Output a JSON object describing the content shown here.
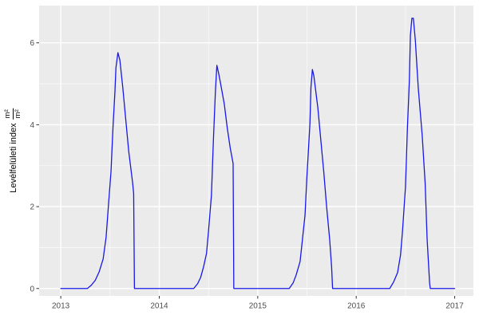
{
  "figure": {
    "background": "#FFFFFF",
    "panel_background": "#EBEBEB",
    "grid_major_color": "#FFFFFF",
    "grid_minor_color": "#FFFFFF",
    "tick_mark_color": "#333333",
    "axis_text_color": "#4D4D4D",
    "line_color": "#1717E8"
  },
  "axes": {
    "y_label": "Levélfelületi index",
    "y_unit_numerator": "m²",
    "y_unit_denominator": "m²"
  },
  "chart_data": {
    "type": "line",
    "title": "",
    "xlabel": "",
    "ylabel": "Levélfelületi index (m²/m²)",
    "legend_position": "none",
    "grid": true,
    "x_ticks": [
      2013,
      2014,
      2015,
      2016,
      2017
    ],
    "x_tick_labels": [
      "2013",
      "2014",
      "2015",
      "2016",
      "2017"
    ],
    "y_ticks": [
      0,
      2,
      4,
      6
    ],
    "y_tick_labels": [
      "0",
      "2",
      "4",
      "6"
    ],
    "x_minor_ticks": [
      2013.5,
      2014.5,
      2015.5,
      2016.5
    ],
    "y_minor_ticks": [
      1,
      3,
      5
    ],
    "xlim": [
      2012.78,
      2017.19
    ],
    "ylim": [
      -0.18,
      6.91
    ],
    "series": [
      {
        "name": "LAI",
        "color": "#1717E8",
        "points": [
          [
            2013.0,
            0
          ],
          [
            2013.27,
            0
          ],
          [
            2013.31,
            0.08
          ],
          [
            2013.35,
            0.2
          ],
          [
            2013.39,
            0.41
          ],
          [
            2013.43,
            0.72
          ],
          [
            2013.46,
            1.25
          ],
          [
            2013.48,
            1.9
          ],
          [
            2013.51,
            2.86
          ],
          [
            2013.53,
            3.93
          ],
          [
            2013.55,
            4.81
          ],
          [
            2013.56,
            5.39
          ],
          [
            2013.58,
            5.76
          ],
          [
            2013.6,
            5.58
          ],
          [
            2013.63,
            4.9
          ],
          [
            2013.66,
            4.12
          ],
          [
            2013.69,
            3.35
          ],
          [
            2013.73,
            2.57
          ],
          [
            2013.74,
            2.32
          ],
          [
            2013.748,
            0
          ],
          [
            2014.35,
            0
          ],
          [
            2014.39,
            0.12
          ],
          [
            2014.42,
            0.27
          ],
          [
            2014.45,
            0.53
          ],
          [
            2014.48,
            0.86
          ],
          [
            2014.5,
            1.4
          ],
          [
            2014.53,
            2.28
          ],
          [
            2014.55,
            3.64
          ],
          [
            2014.57,
            4.81
          ],
          [
            2014.585,
            5.45
          ],
          [
            2014.6,
            5.29
          ],
          [
            2014.62,
            5.04
          ],
          [
            2014.66,
            4.51
          ],
          [
            2014.69,
            3.93
          ],
          [
            2014.72,
            3.44
          ],
          [
            2014.75,
            3.05
          ],
          [
            2014.757,
            0
          ],
          [
            2015.32,
            0
          ],
          [
            2015.36,
            0.14
          ],
          [
            2015.39,
            0.33
          ],
          [
            2015.43,
            0.66
          ],
          [
            2015.45,
            1.11
          ],
          [
            2015.48,
            1.79
          ],
          [
            2015.5,
            2.76
          ],
          [
            2015.53,
            4.03
          ],
          [
            2015.54,
            4.9
          ],
          [
            2015.555,
            5.35
          ],
          [
            2015.57,
            5.19
          ],
          [
            2015.61,
            4.42
          ],
          [
            2015.64,
            3.64
          ],
          [
            2015.67,
            2.86
          ],
          [
            2015.7,
            1.98
          ],
          [
            2015.73,
            1.21
          ],
          [
            2015.75,
            0.53
          ],
          [
            2015.76,
            0
          ],
          [
            2016.34,
            0
          ],
          [
            2016.38,
            0.16
          ],
          [
            2016.42,
            0.39
          ],
          [
            2016.45,
            0.82
          ],
          [
            2016.47,
            1.4
          ],
          [
            2016.5,
            2.47
          ],
          [
            2016.52,
            3.93
          ],
          [
            2016.54,
            5.1
          ],
          [
            2016.55,
            6.17
          ],
          [
            2016.565,
            6.6
          ],
          [
            2016.58,
            6.6
          ],
          [
            2016.6,
            6.07
          ],
          [
            2016.63,
            4.9
          ],
          [
            2016.67,
            3.74
          ],
          [
            2016.7,
            2.57
          ],
          [
            2016.72,
            1.21
          ],
          [
            2016.745,
            0.14
          ],
          [
            2016.752,
            0
          ],
          [
            2017.0,
            0
          ]
        ]
      }
    ]
  }
}
